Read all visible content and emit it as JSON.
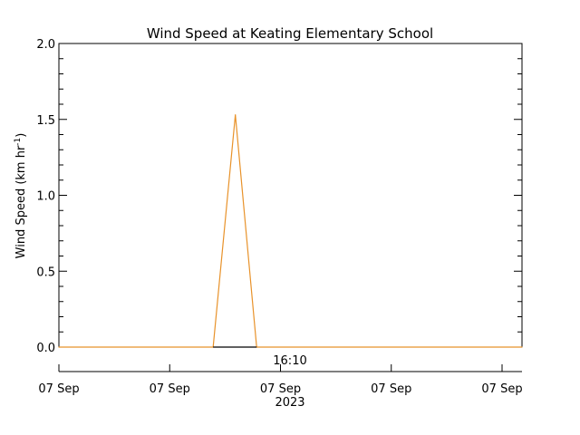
{
  "chart_data": {
    "type": "line",
    "title": "Wind Speed at Keating Elementary School",
    "ylabel": "Wind Speed (km hr",
    "ylabel_sup": "-1",
    "ylabel_close": ")",
    "ylim": [
      0,
      2.0
    ],
    "y_ticks": [
      "0.0",
      "0.5",
      "1.0",
      "1.5",
      "2.0"
    ],
    "y_tick_values": [
      0.0,
      0.5,
      1.0,
      1.5,
      2.0
    ],
    "x_ticks": [
      "07 Sep",
      "07 Sep",
      "07 Sep",
      "07 Sep",
      "07 Sep"
    ],
    "x_year": "2023",
    "x_annotation": "16:10",
    "grid": false,
    "series": [
      {
        "color": "#e8922a",
        "x": [
          0.0,
          0.333,
          0.381,
          0.427,
          1.0
        ],
        "y": [
          0.0,
          0.0,
          1.53,
          0.0,
          0.0
        ]
      }
    ]
  }
}
